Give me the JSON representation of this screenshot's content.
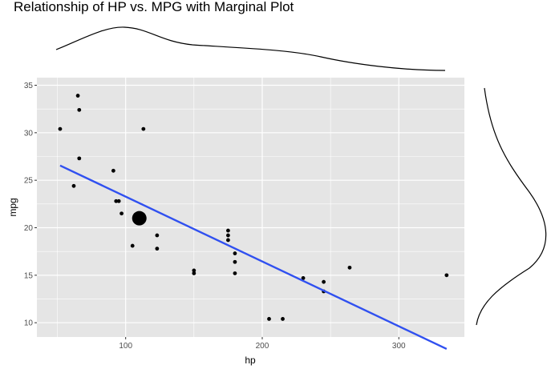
{
  "chart_data": {
    "type": "scatter",
    "title": "Relationship of HP vs. MPG with Marginal Plot",
    "xlabel": "hp",
    "ylabel": "mpg",
    "xlim": [
      35,
      348
    ],
    "ylim": [
      8.5,
      35.8
    ],
    "x_ticks": [
      100,
      200,
      300
    ],
    "y_ticks": [
      10,
      15,
      20,
      25,
      30,
      35
    ],
    "grid": true,
    "legend": "none",
    "colors": {
      "panel": "#e5e5e5",
      "grid": "#ffffff",
      "points": "#000000",
      "fit_line": "#3050f0",
      "density": "#000000"
    },
    "points": [
      {
        "x": 52,
        "y": 30.4
      },
      {
        "x": 62,
        "y": 24.4
      },
      {
        "x": 65,
        "y": 33.9
      },
      {
        "x": 66,
        "y": 32.4
      },
      {
        "x": 66,
        "y": 27.3
      },
      {
        "x": 91,
        "y": 26.0
      },
      {
        "x": 93,
        "y": 22.8
      },
      {
        "x": 95,
        "y": 22.8
      },
      {
        "x": 97,
        "y": 21.5
      },
      {
        "x": 105,
        "y": 18.1
      },
      {
        "x": 110,
        "y": 21.0,
        "size": "large"
      },
      {
        "x": 113,
        "y": 30.4
      },
      {
        "x": 123,
        "y": 19.2
      },
      {
        "x": 123,
        "y": 17.8
      },
      {
        "x": 150,
        "y": 15.5
      },
      {
        "x": 150,
        "y": 15.2
      },
      {
        "x": 175,
        "y": 19.7
      },
      {
        "x": 175,
        "y": 19.2
      },
      {
        "x": 175,
        "y": 18.7
      },
      {
        "x": 180,
        "y": 17.3
      },
      {
        "x": 180,
        "y": 16.4
      },
      {
        "x": 180,
        "y": 15.2
      },
      {
        "x": 205,
        "y": 10.4
      },
      {
        "x": 215,
        "y": 10.4
      },
      {
        "x": 230,
        "y": 14.7
      },
      {
        "x": 245,
        "y": 14.3
      },
      {
        "x": 245,
        "y": 13.3
      },
      {
        "x": 264,
        "y": 15.8
      },
      {
        "x": 335,
        "y": 15.0
      }
    ],
    "fit_line": [
      {
        "x": 52,
        "y": 26.55
      },
      {
        "x": 335,
        "y": 7.24
      }
    ]
  }
}
